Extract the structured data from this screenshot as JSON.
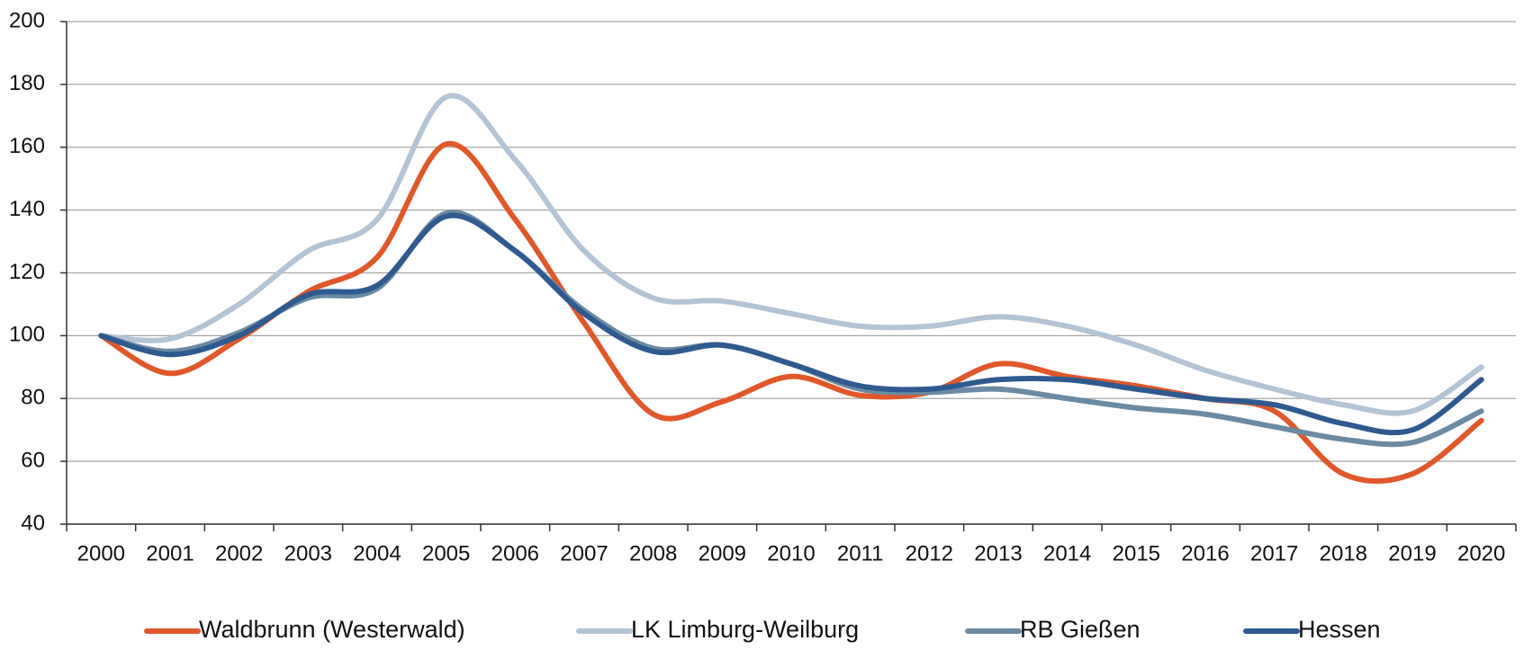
{
  "chart_data": {
    "type": "line",
    "categories": [
      "2000",
      "2001",
      "2002",
      "2003",
      "2004",
      "2005",
      "2006",
      "2007",
      "2008",
      "2009",
      "2010",
      "2011",
      "2012",
      "2013",
      "2014",
      "2015",
      "2016",
      "2017",
      "2018",
      "2019",
      "2020"
    ],
    "series": [
      {
        "name": "Waldbrunn (Westerwald)",
        "color": "#e0582a",
        "values": [
          100,
          88,
          99,
          114,
          125,
          161,
          137,
          104,
          75,
          79,
          87,
          81,
          82,
          91,
          87,
          84,
          80,
          76,
          56,
          56,
          73
        ]
      },
      {
        "name": "LK Limburg-Weilburg",
        "color": "#b4c4d4",
        "values": [
          100,
          99,
          110,
          127,
          137,
          176,
          156,
          127,
          112,
          111,
          107,
          103,
          103,
          106,
          103,
          97,
          89,
          83,
          78,
          76,
          90
        ]
      },
      {
        "name": "RB Gießen",
        "color": "#6b8aa3",
        "values": [
          100,
          95,
          101,
          112,
          115,
          139,
          127,
          108,
          96,
          97,
          91,
          83,
          82,
          83,
          80,
          77,
          75,
          71,
          67,
          66,
          76
        ]
      },
      {
        "name": "Hessen",
        "color": "#2f5a8f",
        "values": [
          100,
          94,
          100,
          113,
          116,
          138,
          127,
          107,
          95,
          97,
          91,
          84,
          83,
          86,
          86,
          83,
          80,
          78,
          72,
          70,
          86
        ]
      }
    ],
    "ylim": [
      40,
      200
    ],
    "yticks": [
      40,
      60,
      80,
      100,
      120,
      140,
      160,
      180,
      200
    ],
    "grid": true
  }
}
